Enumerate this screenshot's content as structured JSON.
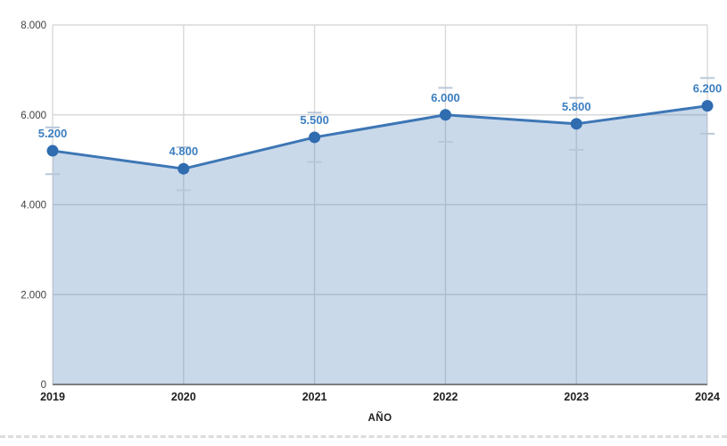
{
  "chart_data": {
    "type": "area",
    "categories": [
      "2019",
      "2020",
      "2021",
      "2022",
      "2023",
      "2024"
    ],
    "values": [
      5200,
      4800,
      5500,
      6000,
      5800,
      6200
    ],
    "point_labels": [
      "5.200",
      "4.800",
      "5.500",
      "6.000",
      "5.800",
      "6.200"
    ],
    "title": "",
    "xlabel": "AÑO",
    "ylabel": "",
    "ylim": [
      0,
      8000
    ],
    "yticks": [
      0,
      2000,
      4000,
      6000,
      8000
    ],
    "ytick_labels": [
      "0",
      "2.000",
      "4.000",
      "6.000",
      "8.000"
    ],
    "grid": true,
    "legend": "none",
    "error_bar_percent": 10,
    "colors": {
      "line": "#3d76b5",
      "marker": "#2f6cb0",
      "area_fill": "rgba(61,118,181,0.28)",
      "point_label_text": "#3b7ec0",
      "gridline": "#d9d9d9",
      "axis_baseline": "#7f7f7f",
      "ytick_text": "#424242",
      "xtick_text": "#1f1f1f",
      "error_cap": "#b9c7d8"
    }
  }
}
